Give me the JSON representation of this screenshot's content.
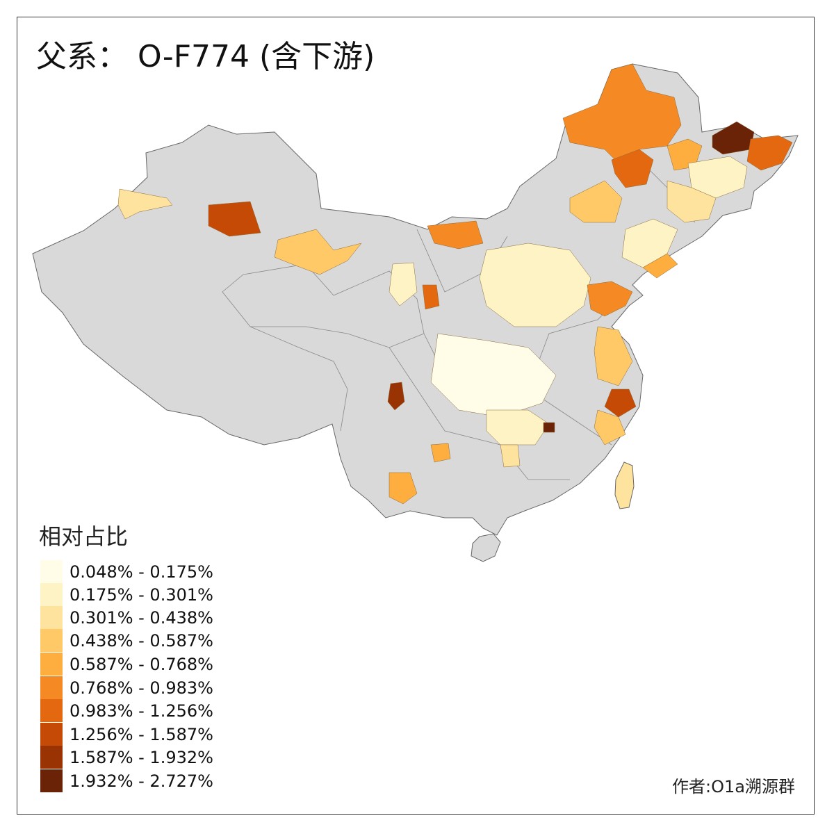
{
  "title": {
    "prefix": "父系：",
    "haplogroup": "O-F774 (含下游)"
  },
  "legend": {
    "title": "相对占比",
    "items": [
      {
        "label": "0.048% - 0.175%",
        "color": "#FFFDE8"
      },
      {
        "label": "0.175% - 0.301%",
        "color": "#FEF3C4"
      },
      {
        "label": "0.301% - 0.438%",
        "color": "#FEE39F"
      },
      {
        "label": "0.438% - 0.587%",
        "color": "#FEC966"
      },
      {
        "label": "0.587% - 0.768%",
        "color": "#FDAE3F"
      },
      {
        "label": "0.768% - 0.983%",
        "color": "#F58A24"
      },
      {
        "label": "0.983% - 1.256%",
        "color": "#E36810"
      },
      {
        "label": "1.256% - 1.587%",
        "color": "#C44A05"
      },
      {
        "label": "1.587% - 1.932%",
        "color": "#9A3304"
      },
      {
        "label": "1.932% - 2.727%",
        "color": "#6A2306"
      }
    ]
  },
  "map": {
    "no_data_color": "#D9D9D9",
    "border_color": "#666666"
  },
  "author": "作者:O1a溯源群"
}
